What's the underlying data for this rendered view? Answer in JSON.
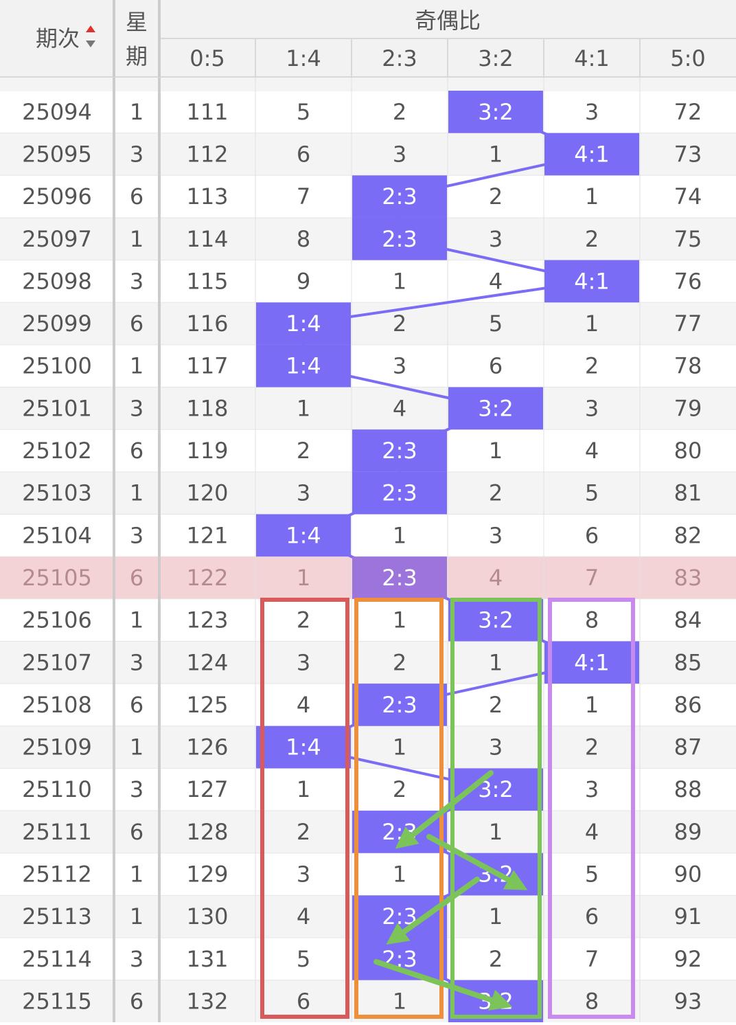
{
  "header": {
    "period": "期次",
    "weekday_top": "星",
    "weekday_bottom": "期",
    "group": "奇偶比",
    "columns": [
      "0:5",
      "1:4",
      "2:3",
      "3:2",
      "4:1",
      "5:0"
    ]
  },
  "table": {
    "highlight_row": 11,
    "rows": [
      [
        "25094",
        "1",
        "111",
        "5",
        "2",
        "3:2",
        "3",
        "72"
      ],
      [
        "25095",
        "3",
        "112",
        "6",
        "3",
        "1",
        "4:1",
        "73"
      ],
      [
        "25096",
        "6",
        "113",
        "7",
        "2:3",
        "2",
        "1",
        "74"
      ],
      [
        "25097",
        "1",
        "114",
        "8",
        "2:3",
        "3",
        "2",
        "75"
      ],
      [
        "25098",
        "3",
        "115",
        "9",
        "1",
        "4",
        "4:1",
        "76"
      ],
      [
        "25099",
        "6",
        "116",
        "1:4",
        "2",
        "5",
        "1",
        "77"
      ],
      [
        "25100",
        "1",
        "117",
        "1:4",
        "3",
        "6",
        "2",
        "78"
      ],
      [
        "25101",
        "3",
        "118",
        "1",
        "4",
        "3:2",
        "3",
        "79"
      ],
      [
        "25102",
        "6",
        "119",
        "2",
        "2:3",
        "1",
        "4",
        "80"
      ],
      [
        "25103",
        "1",
        "120",
        "3",
        "2:3",
        "2",
        "5",
        "81"
      ],
      [
        "25104",
        "3",
        "121",
        "1:4",
        "1",
        "3",
        "6",
        "82"
      ],
      [
        "25105",
        "6",
        "122",
        "1",
        "2:3",
        "4",
        "7",
        "83"
      ],
      [
        "25106",
        "1",
        "123",
        "2",
        "1",
        "3:2",
        "8",
        "84"
      ],
      [
        "25107",
        "3",
        "124",
        "3",
        "2",
        "1",
        "4:1",
        "85"
      ],
      [
        "25108",
        "6",
        "125",
        "4",
        "2:3",
        "2",
        "1",
        "86"
      ],
      [
        "25109",
        "1",
        "126",
        "1:4",
        "1",
        "3",
        "2",
        "87"
      ],
      [
        "25110",
        "3",
        "127",
        "1",
        "2",
        "3:2",
        "3",
        "88"
      ],
      [
        "25111",
        "6",
        "128",
        "2",
        "2:3",
        "1",
        "4",
        "89"
      ],
      [
        "25112",
        "1",
        "129",
        "3",
        "1",
        "3:2",
        "5",
        "90"
      ],
      [
        "25113",
        "1",
        "130",
        "4",
        "2:3",
        "1",
        "6",
        "91"
      ],
      [
        "25114",
        "3",
        "131",
        "5",
        "2:3",
        "2",
        "7",
        "92"
      ],
      [
        "25115",
        "6",
        "132",
        "6",
        "1",
        "3:2",
        "8",
        "93"
      ]
    ]
  }
}
